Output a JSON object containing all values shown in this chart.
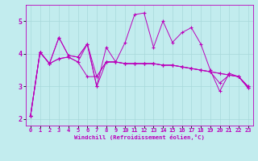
{
  "title": "",
  "xlabel": "Windchill (Refroidissement éolien,°C)",
  "xlim": [
    -0.5,
    23.5
  ],
  "ylim": [
    1.8,
    5.5
  ],
  "xticks": [
    0,
    1,
    2,
    3,
    4,
    5,
    6,
    7,
    8,
    9,
    10,
    11,
    12,
    13,
    14,
    15,
    16,
    17,
    18,
    19,
    20,
    21,
    22,
    23
  ],
  "yticks": [
    2,
    3,
    4,
    5
  ],
  "background_color": "#c2ecee",
  "grid_color": "#a8d8da",
  "line_color": "#bb00bb",
  "series": [
    [
      2.1,
      4.05,
      3.7,
      4.5,
      3.95,
      3.9,
      4.3,
      3.0,
      4.2,
      3.75,
      4.35,
      5.2,
      5.25,
      4.2,
      5.0,
      4.35,
      4.65,
      4.8,
      4.3,
      3.5,
      2.85,
      3.4,
      3.3,
      2.95
    ],
    [
      2.1,
      4.05,
      3.7,
      3.85,
      3.9,
      3.75,
      4.3,
      3.3,
      3.75,
      3.75,
      3.7,
      3.7,
      3.7,
      3.7,
      3.65,
      3.65,
      3.6,
      3.55,
      3.5,
      3.45,
      3.4,
      3.35,
      3.3,
      3.0
    ],
    [
      2.1,
      4.05,
      3.7,
      4.5,
      3.95,
      3.9,
      4.3,
      3.0,
      3.75,
      3.75,
      3.7,
      3.7,
      3.7,
      3.7,
      3.65,
      3.65,
      3.6,
      3.55,
      3.5,
      3.45,
      3.1,
      3.35,
      3.3,
      2.95
    ],
    [
      2.1,
      4.05,
      3.7,
      3.85,
      3.9,
      3.75,
      3.3,
      3.3,
      3.75,
      3.75,
      3.7,
      3.7,
      3.7,
      3.7,
      3.65,
      3.65,
      3.6,
      3.55,
      3.5,
      3.45,
      3.4,
      3.35,
      3.3,
      3.0
    ]
  ],
  "marker_size": 3,
  "linewidth": 0.7,
  "tick_fontsize": 5.0,
  "xlabel_fontsize": 5.2,
  "ylabel_fontsize": 6.0
}
